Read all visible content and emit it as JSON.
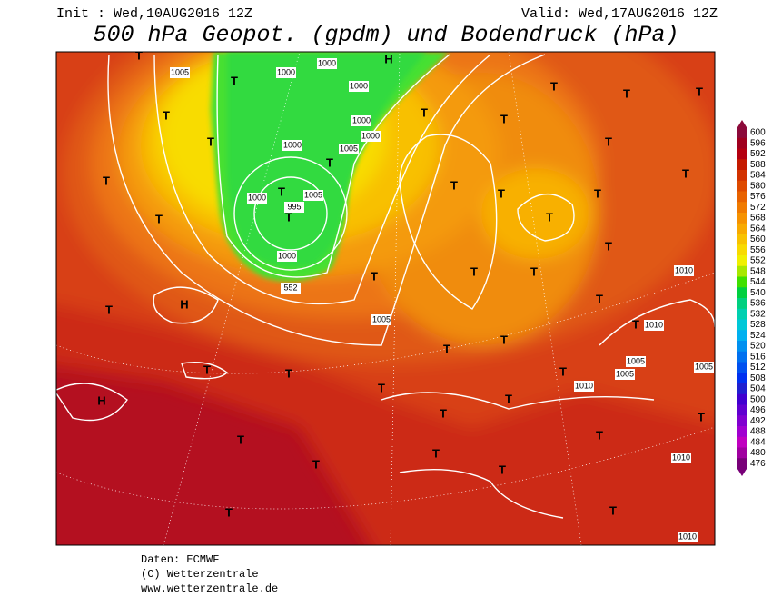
{
  "header": {
    "init": "Init : Wed,10AUG2016 12Z",
    "valid": "Valid: Wed,17AUG2016 12Z",
    "title": "500 hPa Geopot. (gpdm) und Bodendruck (hPa)"
  },
  "map": {
    "labels": [
      "H",
      "H",
      "H",
      "T",
      "T",
      "T",
      "T",
      "T",
      "T",
      "T",
      "T",
      "T",
      "T",
      "T",
      "T",
      "T",
      "T",
      "T",
      "T",
      "T",
      "T",
      "T",
      "T",
      "T",
      "T",
      "T",
      "T",
      "T",
      "T",
      "T",
      "T",
      "T",
      "T",
      "T",
      "T",
      "T",
      "T",
      "T",
      "T",
      "T",
      "T",
      "T",
      "T",
      "T",
      "T",
      "T",
      "1005",
      "1000",
      "1000",
      "1000",
      "1000",
      "1000",
      "1005",
      "1000",
      "1005",
      "1000",
      "995",
      "1000",
      "552",
      "1005",
      "1010",
      "1010",
      "1005",
      "1005",
      "1010",
      "1010",
      "1010",
      "1005"
    ]
  },
  "colorbar": {
    "levels": [
      600,
      596,
      592,
      588,
      584,
      580,
      576,
      572,
      568,
      564,
      560,
      556,
      552,
      548,
      544,
      540,
      536,
      532,
      528,
      524,
      520,
      516,
      512,
      508,
      504,
      500,
      496,
      492,
      488,
      484,
      480,
      476
    ],
    "colors": [
      "#8c0a3a",
      "#a0001e",
      "#b40010",
      "#c41a00",
      "#d23200",
      "#de4a00",
      "#e86200",
      "#f07a00",
      "#f69200",
      "#f8aa00",
      "#f8c200",
      "#f8da00",
      "#f0f000",
      "#a8e800",
      "#40e000",
      "#00d040",
      "#00d080",
      "#00d0b0",
      "#00c8d8",
      "#00b0f0",
      "#0090f0",
      "#0070f0",
      "#0050f0",
      "#0030f0",
      "#2020d0",
      "#4000d0",
      "#6000d0",
      "#8000d0",
      "#a000d0",
      "#c000c0",
      "#a000a0",
      "#780078"
    ]
  },
  "footer": {
    "source": "Daten: ECMWF",
    "copyright": "(C) Wetterzentrale",
    "url": "www.wetterzentrale.de"
  }
}
